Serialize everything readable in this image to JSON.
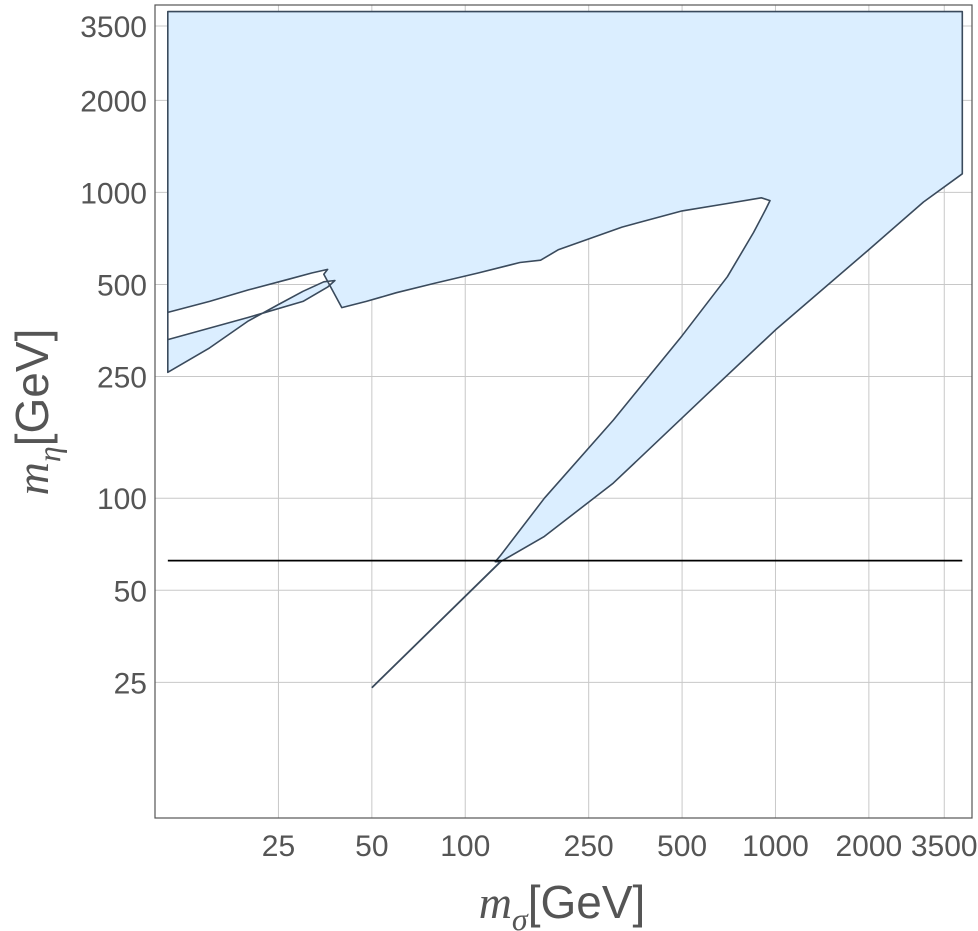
{
  "chart_data": {
    "type": "area",
    "xscale": "log",
    "yscale": "log",
    "xlim": [
      10,
      4300
    ],
    "ylim": [
      9,
      4100
    ],
    "xticks": [
      25,
      50,
      100,
      250,
      500,
      1000,
      2000,
      3500
    ],
    "yticks": [
      25,
      50,
      100,
      250,
      500,
      1000,
      2000,
      3500
    ],
    "xtick_labels": [
      "25",
      "50",
      "100",
      "250",
      "500",
      "1000",
      "2000",
      "3500"
    ],
    "ytick_labels": [
      "25",
      "50",
      "100",
      "250",
      "500",
      "1000",
      "2000",
      "3500"
    ],
    "xlabel_symbol": "m",
    "xlabel_sub": "σ",
    "xlabel_unit": "[GeV]",
    "ylabel_symbol": "m",
    "ylabel_sub": "η",
    "ylabel_unit": "[GeV]",
    "grid": true,
    "colors": {
      "region_fill": "#dbeeff",
      "region_edge": "#3a4a5c",
      "line": "#000000",
      "grid": "#c8c8c8",
      "axis": "#555555"
    },
    "region_boundary": [
      [
        11,
        3900
      ],
      [
        4000,
        3900
      ],
      [
        4000,
        1150
      ],
      [
        3000,
        930
      ],
      [
        2000,
        650
      ],
      [
        1000,
        355
      ],
      [
        600,
        218
      ],
      [
        300,
        112
      ],
      [
        180,
        75
      ],
      [
        130,
        62
      ],
      [
        125,
        62
      ],
      [
        130,
        65
      ],
      [
        180,
        100
      ],
      [
        300,
        180
      ],
      [
        500,
        340
      ],
      [
        700,
        530
      ],
      [
        850,
        740
      ],
      [
        930,
        880
      ],
      [
        960,
        940
      ],
      [
        900,
        960
      ],
      [
        700,
        920
      ],
      [
        500,
        870
      ],
      [
        320,
        770
      ],
      [
        200,
        650
      ],
      [
        175,
        600
      ],
      [
        150,
        590
      ],
      [
        110,
        545
      ],
      [
        80,
        505
      ],
      [
        60,
        470
      ],
      [
        48,
        440
      ],
      [
        40,
        420
      ],
      [
        35,
        540
      ],
      [
        36,
        560
      ],
      [
        32,
        545
      ],
      [
        27,
        520
      ],
      [
        20,
        480
      ],
      [
        15,
        440
      ],
      [
        11,
        405
      ],
      [
        11,
        330
      ],
      [
        20,
        390
      ],
      [
        30,
        440
      ],
      [
        36,
        490
      ],
      [
        38,
        515
      ],
      [
        35,
        510
      ],
      [
        30,
        475
      ],
      [
        25,
        430
      ],
      [
        20,
        380
      ],
      [
        15,
        310
      ],
      [
        11,
        258
      ],
      [
        11,
        3900
      ]
    ],
    "diagonal_line": [
      [
        50,
        24
      ],
      [
        130,
        62
      ]
    ],
    "horizontal_line": {
      "y": 62.5,
      "x_range": [
        11,
        4000
      ]
    }
  }
}
